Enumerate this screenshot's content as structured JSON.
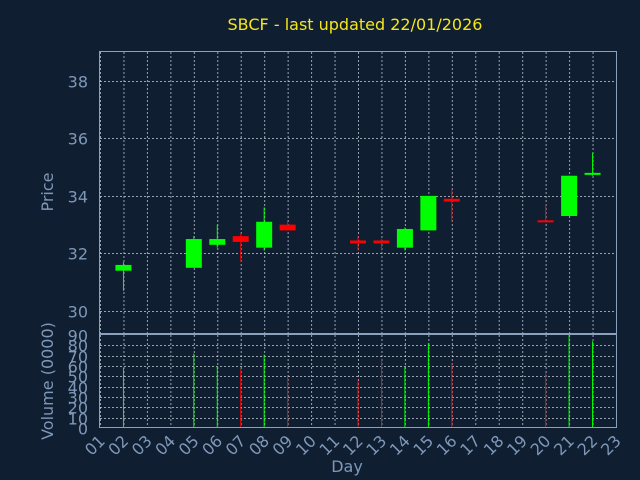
{
  "colors": {
    "background": "#0f1e30",
    "up": "#00ff00",
    "down": "#ff0000",
    "title": "#f5e61c",
    "text": "#7f98b8",
    "grid": "#c8d0da",
    "frame": "#8aa0bc"
  },
  "chart_data": {
    "type": "candlestick",
    "title": "SBCF - last updated 22/01/2026",
    "xlabel": "Day",
    "price_ylabel": "Price",
    "volume_ylabel": "Volume (0000)",
    "x_ticks": [
      "01",
      "02",
      "03",
      "04",
      "05",
      "06",
      "07",
      "08",
      "09",
      "10",
      "11",
      "12",
      "13",
      "14",
      "15",
      "16",
      "17",
      "18",
      "19",
      "20",
      "21",
      "22",
      "23"
    ],
    "price_ylim": [
      29.2,
      39.0
    ],
    "price_yticks": [
      30,
      32,
      34,
      36,
      38
    ],
    "volume_ylim": [
      0,
      90
    ],
    "volume_yticks": [
      0,
      10,
      20,
      30,
      40,
      50,
      60,
      70,
      80,
      90
    ],
    "grid": true,
    "candles": [
      {
        "day": "02",
        "open": 31.4,
        "high": 31.7,
        "low": 30.7,
        "close": 31.6,
        "volume": 58
      },
      {
        "day": "05",
        "open": 31.5,
        "high": 32.6,
        "low": 31.5,
        "close": 32.5,
        "volume": 72
      },
      {
        "day": "06",
        "open": 32.3,
        "high": 33.0,
        "low": 32.2,
        "close": 32.5,
        "volume": 60
      },
      {
        "day": "07",
        "open": 32.6,
        "high": 32.7,
        "low": 31.7,
        "close": 32.4,
        "volume": 57
      },
      {
        "day": "08",
        "open": 32.2,
        "high": 33.6,
        "low": 32.1,
        "close": 33.1,
        "volume": 71
      },
      {
        "day": "09",
        "open": 33.0,
        "high": 33.1,
        "low": 32.8,
        "close": 32.8,
        "volume": 50
      },
      {
        "day": "12",
        "open": 32.45,
        "high": 32.6,
        "low": 32.1,
        "close": 32.35,
        "volume": 46
      },
      {
        "day": "13",
        "open": 32.45,
        "high": 32.5,
        "low": 32.1,
        "close": 32.35,
        "volume": 67
      },
      {
        "day": "14",
        "open": 32.2,
        "high": 32.9,
        "low": 32.1,
        "close": 32.85,
        "volume": 59
      },
      {
        "day": "15",
        "open": 32.8,
        "high": 34.0,
        "low": 32.8,
        "close": 34.0,
        "volume": 82
      },
      {
        "day": "16",
        "open": 33.9,
        "high": 34.2,
        "low": 33.1,
        "close": 33.8,
        "volume": 63
      },
      {
        "day": "20",
        "open": 33.15,
        "high": 33.7,
        "low": 33.1,
        "close": 33.1,
        "volume": 53
      },
      {
        "day": "21",
        "open": 33.3,
        "high": 34.7,
        "low": 33.3,
        "close": 34.7,
        "volume": 92
      },
      {
        "day": "22",
        "open": 34.75,
        "high": 35.5,
        "low": 34.7,
        "close": 34.8,
        "volume": 84
      }
    ]
  }
}
